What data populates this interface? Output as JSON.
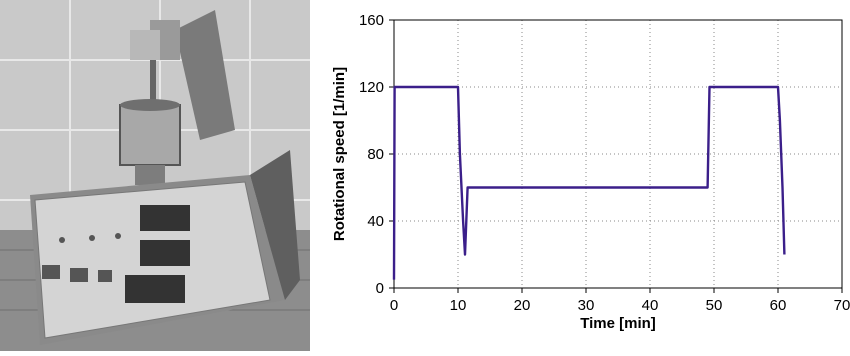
{
  "photo": {
    "description_icon": "apparatus-photo"
  },
  "chart_data": {
    "type": "line",
    "title": "",
    "xlabel": "Time [min]",
    "ylabel": "Rotational speed [1/min]",
    "xlim": [
      0,
      70
    ],
    "ylim": [
      0,
      160
    ],
    "xticks": [
      "0",
      "10",
      "20",
      "30",
      "40",
      "50",
      "60",
      "70"
    ],
    "yticks": [
      "0",
      "40",
      "80",
      "120",
      "160"
    ],
    "grid": true,
    "legend": "none",
    "series": [
      {
        "color": "#3b1f8a",
        "points": [
          [
            0,
            5
          ],
          [
            0.1,
            120
          ],
          [
            10,
            120
          ],
          [
            10.3,
            80
          ],
          [
            10.8,
            40
          ],
          [
            11.1,
            20
          ],
          [
            11.5,
            60
          ],
          [
            49,
            60
          ],
          [
            49.3,
            120
          ],
          [
            60,
            120
          ],
          [
            60.3,
            100
          ],
          [
            60.7,
            60
          ],
          [
            61.0,
            20
          ]
        ]
      }
    ]
  }
}
